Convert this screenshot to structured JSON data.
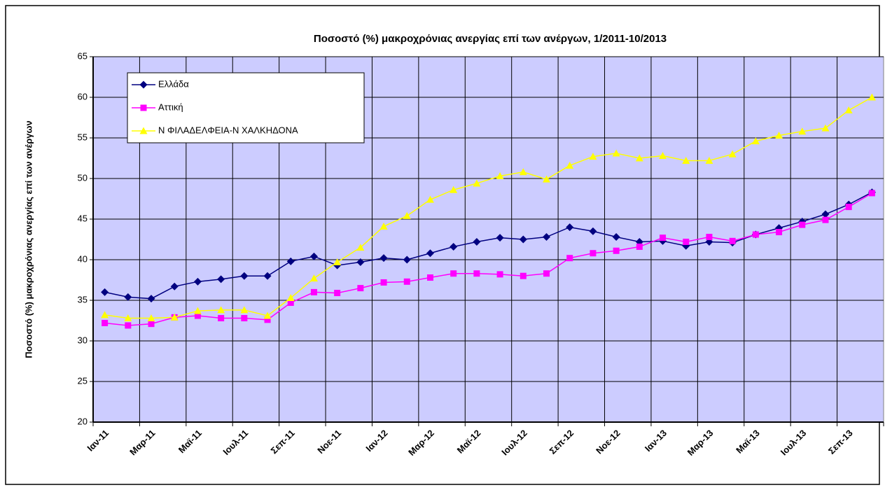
{
  "chart_data": {
    "type": "line",
    "title": "Ποσοστό (%) μακροχρόνιας  ανεργίας επί των ανέργων, 1/2011-10/2013",
    "y_label": "Ποσοστό (%) μακροχρόνιας ανεργίας επί των ανέργων",
    "categories": [
      "Ιαν-11",
      null,
      "Μαρ-11",
      null,
      "Μαϊ-11",
      null,
      "Ιουλ-11",
      null,
      "Σεπ-11",
      null,
      "Νοε-11",
      null,
      "Ιαν-12",
      null,
      "Μαρ-12",
      null,
      "Μαϊ-12",
      null,
      "Ιουλ-12",
      null,
      "Σεπ-12",
      null,
      "Νοε-12",
      null,
      "Ιαν-13",
      null,
      "Μαρ-13",
      null,
      "Μαϊ-13",
      null,
      "Ιουλ-13",
      null,
      "Σεπ-13",
      null
    ],
    "series": [
      {
        "name": "Ελλάδα",
        "color": "#000080",
        "marker": "diamond",
        "values": [
          36.0,
          35.4,
          35.2,
          36.7,
          37.3,
          37.6,
          38.0,
          38.0,
          39.8,
          40.4,
          39.3,
          39.7,
          40.2,
          40.0,
          40.8,
          41.6,
          42.2,
          42.7,
          42.5,
          42.8,
          44.0,
          43.5,
          42.8,
          42.2,
          42.3,
          41.7,
          42.2,
          42.1,
          43.1,
          43.9,
          44.7,
          45.6,
          46.8,
          48.3
        ]
      },
      {
        "name": "Αττική",
        "color": "#ff00ff",
        "marker": "square",
        "values": [
          32.2,
          31.9,
          32.1,
          32.9,
          33.1,
          32.8,
          32.8,
          32.6,
          34.7,
          36.0,
          35.9,
          36.5,
          37.2,
          37.3,
          37.8,
          38.3,
          38.3,
          38.2,
          38.0,
          38.3,
          40.2,
          40.8,
          41.1,
          41.6,
          42.7,
          42.2,
          42.8,
          42.3,
          43.1,
          43.4,
          44.3,
          44.9,
          46.5,
          48.2
        ]
      },
      {
        "name": "Ν ΦΙΛΑΔΕΛΦΕΙΑ-Ν ΧΑΛΚΗΔΟΝΑ",
        "color": "#ffff00",
        "marker": "triangle",
        "values": [
          33.2,
          32.8,
          32.8,
          32.9,
          33.7,
          33.8,
          33.8,
          33.1,
          35.3,
          37.7,
          39.7,
          41.5,
          44.1,
          45.4,
          47.4,
          48.6,
          49.4,
          50.3,
          50.8,
          49.9,
          51.6,
          52.7,
          53.1,
          52.5,
          52.8,
          52.2,
          52.2,
          53.0,
          54.6,
          55.3,
          55.8,
          56.2,
          58.4,
          60.0
        ]
      }
    ],
    "ylim": [
      20,
      65
    ],
    "yticks": [
      20,
      25,
      30,
      35,
      40,
      45,
      50,
      55,
      60,
      65
    ],
    "grid": true,
    "legend": "upper left",
    "plot_background": "#ccccff"
  }
}
